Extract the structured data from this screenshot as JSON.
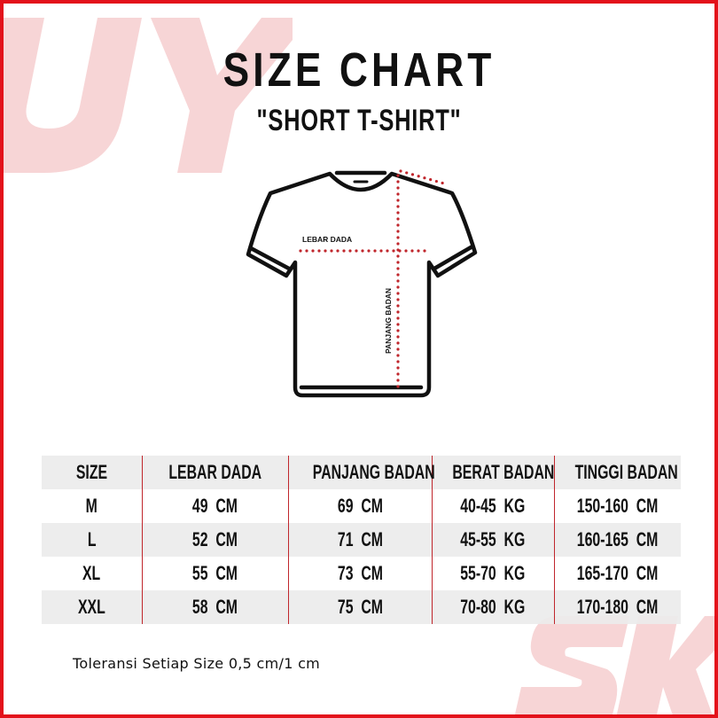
{
  "header": {
    "title": "SIZE CHART",
    "subtitle": "\"SHORT T-SHIRT\""
  },
  "watermark": {
    "left": "UY",
    "right": "SKI"
  },
  "diagram": {
    "chest_label": "LEBAR DADA",
    "length_label": "PANJANG BADAN",
    "measure_color": "#c0262c"
  },
  "table": {
    "headers": [
      "SIZE",
      "LEBAR DADA",
      "PANJANG BADAN",
      "BERAT BADAN",
      "TINGGI BADAN"
    ],
    "rows": [
      [
        "M",
        "49  CM",
        "69  CM",
        "40-45  KG",
        "150-160  CM"
      ],
      [
        "L",
        "52  CM",
        "71  CM",
        "45-55  KG",
        "160-165  CM"
      ],
      [
        "XL",
        "55  CM",
        "73  CM",
        "55-70  KG",
        "165-170  CM"
      ],
      [
        "XXL",
        "58  CM",
        "75  CM",
        "70-80  KG",
        "170-180  CM"
      ]
    ]
  },
  "footer": {
    "note": "Toleransi Setiap Size 0,5 cm/1 cm"
  },
  "colors": {
    "border": "#e3121b",
    "watermark": "#f7d5d6",
    "row_alt": "#ececec"
  }
}
